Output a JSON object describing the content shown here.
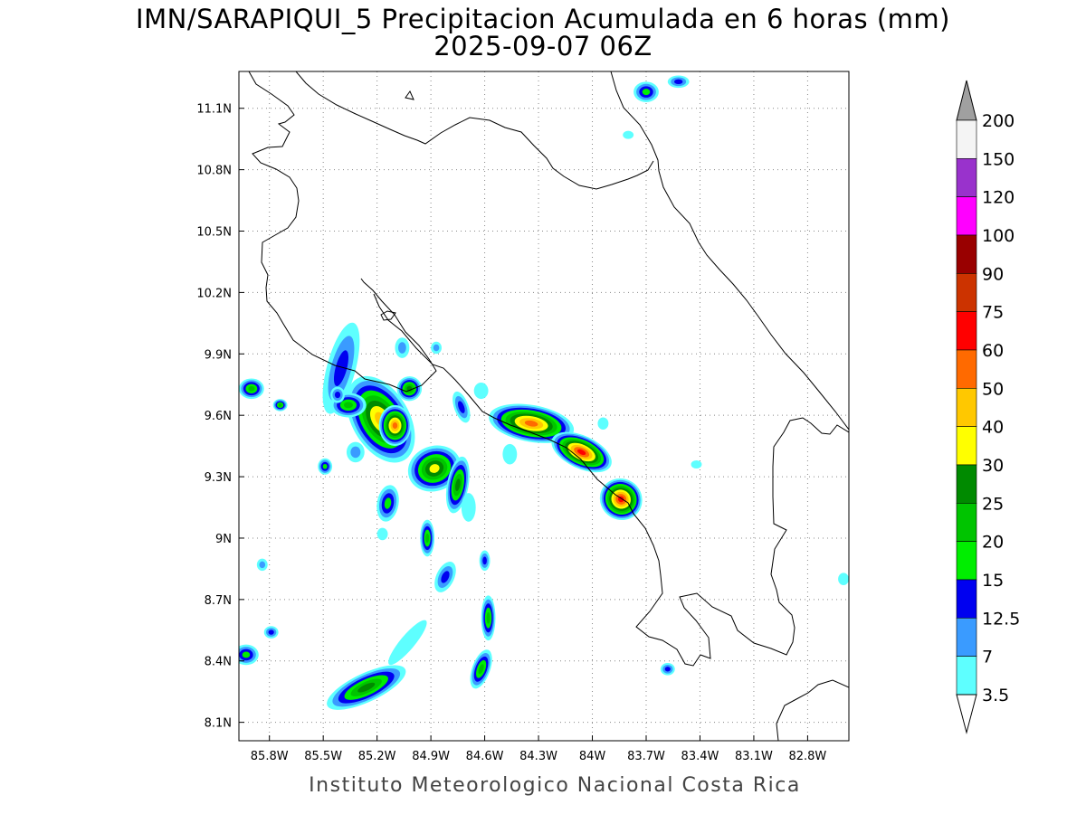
{
  "title": "IMN/SARAPIQUI_5 Precipitacion Acumulada en 6 horas (mm)",
  "subtitle": "2025-09-07 06Z",
  "credit": "Instituto Meteorologico Nacional Costa Rica",
  "map": {
    "lon_range": [
      -85.97,
      -82.57
    ],
    "lat_range": [
      8.01,
      11.28
    ],
    "lon_ticks": [
      {
        "value": -85.8,
        "label": "85.8W"
      },
      {
        "value": -85.5,
        "label": "85.5W"
      },
      {
        "value": -85.2,
        "label": "85.2W"
      },
      {
        "value": -84.9,
        "label": "84.9W"
      },
      {
        "value": -84.6,
        "label": "84.6W"
      },
      {
        "value": -84.3,
        "label": "84.3W"
      },
      {
        "value": -84.0,
        "label": "84W"
      },
      {
        "value": -83.7,
        "label": "83.7W"
      },
      {
        "value": -83.4,
        "label": "83.4W"
      },
      {
        "value": -83.1,
        "label": "83.1W"
      },
      {
        "value": -82.8,
        "label": "82.8W"
      }
    ],
    "lat_ticks": [
      {
        "value": 8.1,
        "label": "8.1N"
      },
      {
        "value": 8.4,
        "label": "8.4N"
      },
      {
        "value": 8.7,
        "label": "8.7N"
      },
      {
        "value": 9.0,
        "label": "9N"
      },
      {
        "value": 9.3,
        "label": "9.3N"
      },
      {
        "value": 9.6,
        "label": "9.6N"
      },
      {
        "value": 9.9,
        "label": "9.9N"
      },
      {
        "value": 10.2,
        "label": "10.2N"
      },
      {
        "value": 10.5,
        "label": "10.5N"
      },
      {
        "value": 10.8,
        "label": "10.8N"
      },
      {
        "value": 11.1,
        "label": "11.1N"
      }
    ],
    "grid": true,
    "coastline_color": "#000000",
    "gridline_color": "#888888"
  },
  "colorbar": {
    "labels": [
      "3.5",
      "7",
      "12.5",
      "15",
      "20",
      "25",
      "30",
      "40",
      "50",
      "60",
      "75",
      "90",
      "100",
      "120",
      "150",
      "200"
    ],
    "colors": [
      "#5effff",
      "#3a9bff",
      "#0000f0",
      "#00ee00",
      "#00c400",
      "#008a00",
      "#ffff00",
      "#ffc800",
      "#ff6a00",
      "#ff0000",
      "#cc3300",
      "#990000",
      "#ff00ff",
      "#9932cc",
      "#f4f4f4"
    ],
    "over_color": "#a0a0a0",
    "under_color": "#ffffff"
  },
  "cells": [
    {
      "lon": -85.18,
      "lat": 9.58,
      "rx": 0.16,
      "ry": 0.23,
      "rot": -30,
      "peak": 8
    },
    {
      "lon": -85.1,
      "lat": 9.55,
      "rx": 0.09,
      "ry": 0.1,
      "rot": 0,
      "peak": 9
    },
    {
      "lon": -85.02,
      "lat": 9.73,
      "rx": 0.07,
      "ry": 0.06,
      "rot": -20,
      "peak": 6
    },
    {
      "lon": -84.88,
      "lat": 9.34,
      "rx": 0.15,
      "ry": 0.11,
      "rot": -20,
      "peak": 7
    },
    {
      "lon": -84.75,
      "lat": 9.26,
      "rx": 0.06,
      "ry": 0.14,
      "rot": 10,
      "peak": 6
    },
    {
      "lon": -84.34,
      "lat": 9.56,
      "rx": 0.24,
      "ry": 0.09,
      "rot": 10,
      "peak": 9
    },
    {
      "lon": -84.06,
      "lat": 9.42,
      "rx": 0.18,
      "ry": 0.08,
      "rot": 25,
      "peak": 10
    },
    {
      "lon": -83.84,
      "lat": 9.19,
      "rx": 0.12,
      "ry": 0.1,
      "rot": 35,
      "peak": 10
    },
    {
      "lon": -85.4,
      "lat": 9.83,
      "rx": 0.08,
      "ry": 0.23,
      "rot": 15,
      "peak": 3
    },
    {
      "lon": -85.36,
      "lat": 9.65,
      "rx": 0.1,
      "ry": 0.06,
      "rot": 0,
      "peak": 5
    },
    {
      "lon": -85.9,
      "lat": 9.73,
      "rx": 0.07,
      "ry": 0.05,
      "rot": 0,
      "peak": 5
    },
    {
      "lon": -85.74,
      "lat": 9.65,
      "rx": 0.04,
      "ry": 0.03,
      "rot": 0,
      "peak": 5
    },
    {
      "lon": -85.14,
      "lat": 9.17,
      "rx": 0.06,
      "ry": 0.09,
      "rot": 10,
      "peak": 4
    },
    {
      "lon": -84.92,
      "lat": 9.0,
      "rx": 0.04,
      "ry": 0.09,
      "rot": 0,
      "peak": 5
    },
    {
      "lon": -84.58,
      "lat": 8.61,
      "rx": 0.04,
      "ry": 0.11,
      "rot": 0,
      "peak": 5
    },
    {
      "lon": -84.62,
      "lat": 8.36,
      "rx": 0.05,
      "ry": 0.1,
      "rot": 20,
      "peak": 5
    },
    {
      "lon": -85.26,
      "lat": 8.27,
      "rx": 0.24,
      "ry": 0.07,
      "rot": -25,
      "peak": 6
    },
    {
      "lon": -84.82,
      "lat": 8.81,
      "rx": 0.05,
      "ry": 0.08,
      "rot": 25,
      "peak": 3
    },
    {
      "lon": -83.7,
      "lat": 11.18,
      "rx": 0.07,
      "ry": 0.05,
      "rot": 0,
      "peak": 4
    },
    {
      "lon": -83.52,
      "lat": 11.23,
      "rx": 0.06,
      "ry": 0.03,
      "rot": 0,
      "peak": 3
    },
    {
      "lon": -85.49,
      "lat": 9.35,
      "rx": 0.04,
      "ry": 0.04,
      "rot": 0,
      "peak": 4
    },
    {
      "lon": -85.93,
      "lat": 8.43,
      "rx": 0.07,
      "ry": 0.05,
      "rot": 0,
      "peak": 4
    },
    {
      "lon": -85.79,
      "lat": 8.54,
      "rx": 0.04,
      "ry": 0.03,
      "rot": 0,
      "peak": 3
    },
    {
      "lon": -85.84,
      "lat": 8.87,
      "rx": 0.03,
      "ry": 0.03,
      "rot": 0,
      "peak": 2
    },
    {
      "lon": -84.6,
      "lat": 8.89,
      "rx": 0.03,
      "ry": 0.05,
      "rot": 0,
      "peak": 3
    },
    {
      "lon": -84.73,
      "lat": 9.64,
      "rx": 0.04,
      "ry": 0.08,
      "rot": -20,
      "peak": 3
    },
    {
      "lon": -84.87,
      "lat": 9.93,
      "rx": 0.03,
      "ry": 0.03,
      "rot": 0,
      "peak": 2
    },
    {
      "lon": -85.06,
      "lat": 9.93,
      "rx": 0.04,
      "ry": 0.05,
      "rot": 0,
      "peak": 2
    },
    {
      "lon": -85.32,
      "lat": 9.42,
      "rx": 0.05,
      "ry": 0.05,
      "rot": 0,
      "peak": 2
    },
    {
      "lon": -83.8,
      "lat": 10.97,
      "rx": 0.03,
      "ry": 0.02,
      "rot": 0,
      "peak": 1
    },
    {
      "lon": -83.94,
      "lat": 9.56,
      "rx": 0.03,
      "ry": 0.03,
      "rot": 0,
      "peak": 1
    },
    {
      "lon": -83.58,
      "lat": 8.36,
      "rx": 0.04,
      "ry": 0.03,
      "rot": 0,
      "peak": 3
    },
    {
      "lon": -85.03,
      "lat": 8.49,
      "rx": 0.04,
      "ry": 0.14,
      "rot": 40,
      "peak": 1
    },
    {
      "lon": -83.42,
      "lat": 9.36,
      "rx": 0.03,
      "ry": 0.02,
      "rot": 0,
      "peak": 1
    },
    {
      "lon": -82.6,
      "lat": 8.8,
      "rx": 0.03,
      "ry": 0.03,
      "rot": 0,
      "peak": 1
    },
    {
      "lon": -84.46,
      "lat": 9.41,
      "rx": 0.04,
      "ry": 0.05,
      "rot": 0,
      "peak": 1
    },
    {
      "lon": -84.69,
      "lat": 9.15,
      "rx": 0.04,
      "ry": 0.07,
      "rot": 0,
      "peak": 1
    },
    {
      "lon": -85.17,
      "lat": 9.02,
      "rx": 0.03,
      "ry": 0.03,
      "rot": 0,
      "peak": 1
    },
    {
      "lon": -85.42,
      "lat": 9.7,
      "rx": 0.04,
      "ry": 0.04,
      "rot": 0,
      "peak": 3
    },
    {
      "lon": -84.62,
      "lat": 9.72,
      "rx": 0.04,
      "ry": 0.04,
      "rot": 0,
      "peak": 1
    }
  ]
}
